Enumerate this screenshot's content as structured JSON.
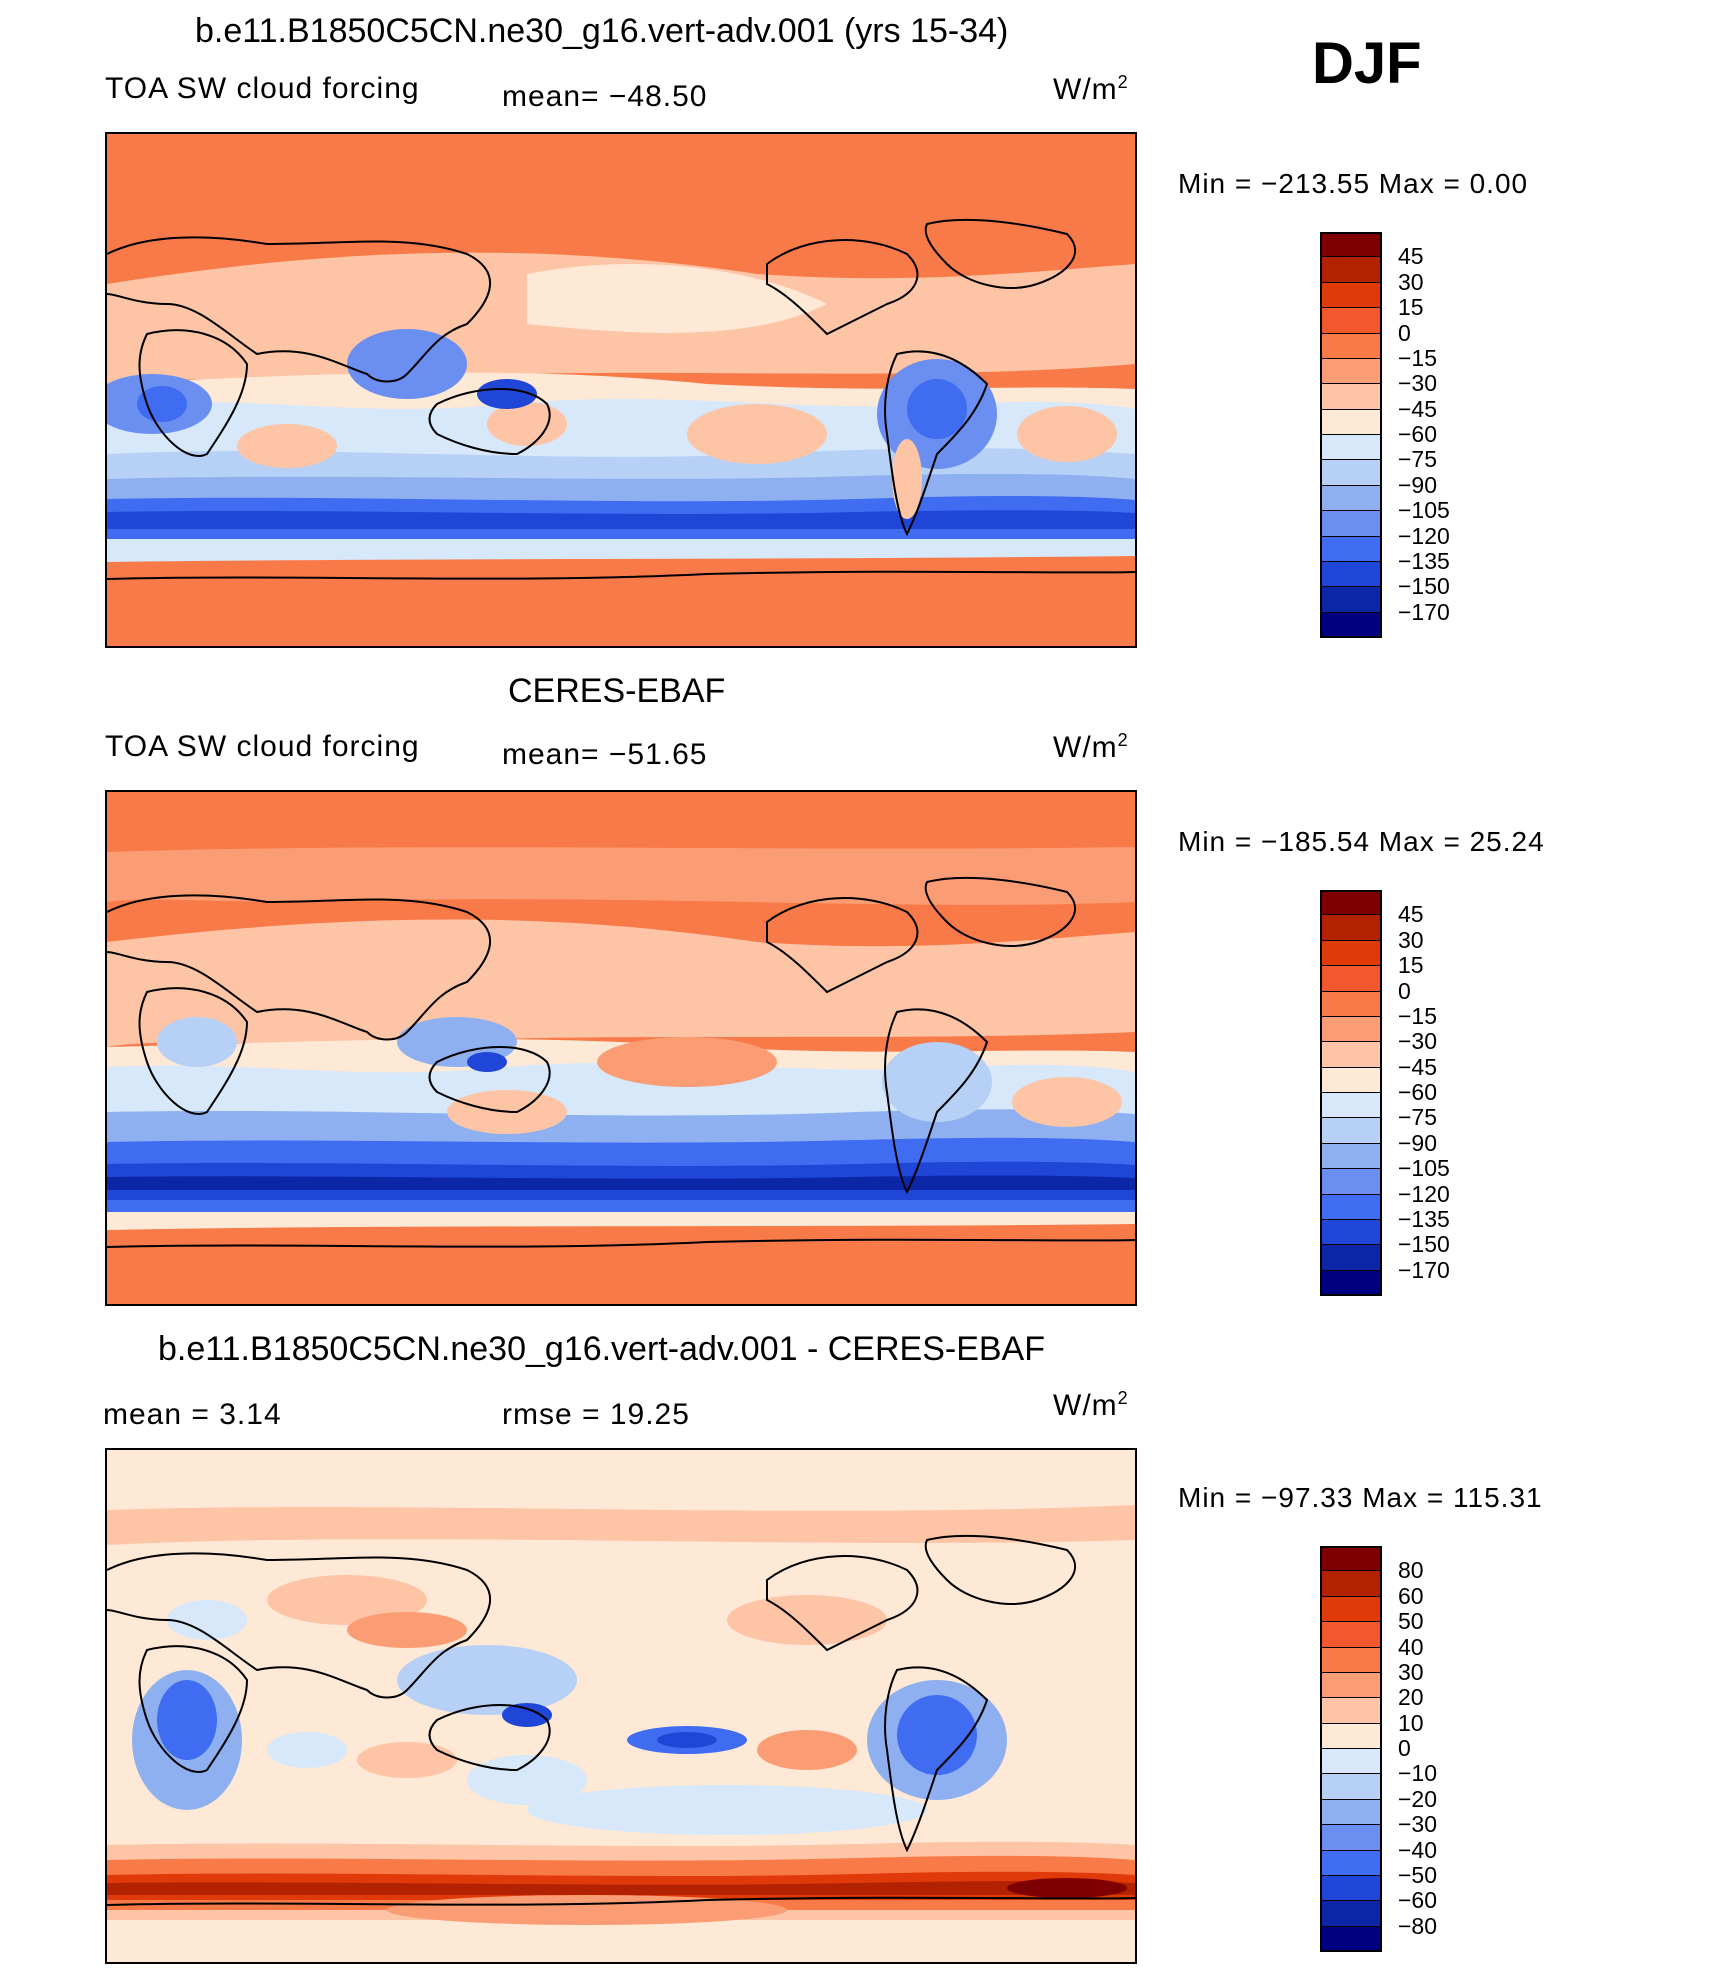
{
  "figure": {
    "season": "DJF",
    "units_label": "W/m",
    "units_sup": "2"
  },
  "panels": [
    {
      "title": "b.e11.B1850C5CN.ne30_g16.vert-adv.001 (yrs 15-34)",
      "left_label": "TOA SW cloud forcing",
      "mid_label": "mean=  −48.50",
      "units": "W/m",
      "units_sup": "2",
      "min_max": "Min  =  −213.55  Max  =     0.00",
      "colorbar": {
        "labels": [
          "45",
          "30",
          "15",
          "0",
          "−15",
          "−30",
          "−45",
          "−60",
          "−75",
          "−90",
          "−105",
          "−120",
          "−135",
          "−150",
          "−170"
        ],
        "colors": [
          "#7f0000",
          "#b22200",
          "#e03a0b",
          "#f2582d",
          "#f87a48",
          "#fb9d74",
          "#fdc4a6",
          "#fee8d6",
          "#d6e8fa",
          "#b6d0f6",
          "#8fb0f0",
          "#6a8ff0",
          "#3f6cf0",
          "#1f46d6",
          "#0c26a8",
          "#000080"
        ]
      },
      "map": {
        "kind": "model"
      }
    },
    {
      "title": "CERES-EBAF",
      "left_label": "TOA SW cloud forcing",
      "mid_label": "mean=  −51.65",
      "units": "W/m",
      "units_sup": "2",
      "min_max": "Min  =  −185.54  Max  =   25.24",
      "colorbar": {
        "labels": [
          "45",
          "30",
          "15",
          "0",
          "−15",
          "−30",
          "−45",
          "−60",
          "−75",
          "−90",
          "−105",
          "−120",
          "−135",
          "−150",
          "−170"
        ],
        "colors": [
          "#7f0000",
          "#b22200",
          "#e03a0b",
          "#f2582d",
          "#f87a48",
          "#fb9d74",
          "#fdc4a6",
          "#fee8d6",
          "#d6e8fa",
          "#b6d0f6",
          "#8fb0f0",
          "#6a8ff0",
          "#3f6cf0",
          "#1f46d6",
          "#0c26a8",
          "#000080"
        ]
      },
      "map": {
        "kind": "obs"
      }
    },
    {
      "title": "b.e11.B1850C5CN.ne30_g16.vert-adv.001 - CERES-EBAF",
      "left_label": "mean  =     3.14",
      "mid_label": "rmse  =    19.25",
      "units": "W/m",
      "units_sup": "2",
      "min_max": "Min  =  −97.33  Max  =  115.31",
      "colorbar": {
        "labels": [
          "80",
          "60",
          "50",
          "40",
          "30",
          "20",
          "10",
          "0",
          "−10",
          "−20",
          "−30",
          "−40",
          "−50",
          "−60",
          "−80"
        ],
        "colors": [
          "#7f0000",
          "#b22200",
          "#e03a0b",
          "#f2582d",
          "#f87a48",
          "#fb9d74",
          "#fdc4a6",
          "#fee8d6",
          "#d6e8fa",
          "#b6d0f6",
          "#8fb0f0",
          "#6a8ff0",
          "#3f6cf0",
          "#1f46d6",
          "#0c26a8",
          "#000080"
        ]
      },
      "map": {
        "kind": "diff"
      }
    }
  ]
}
